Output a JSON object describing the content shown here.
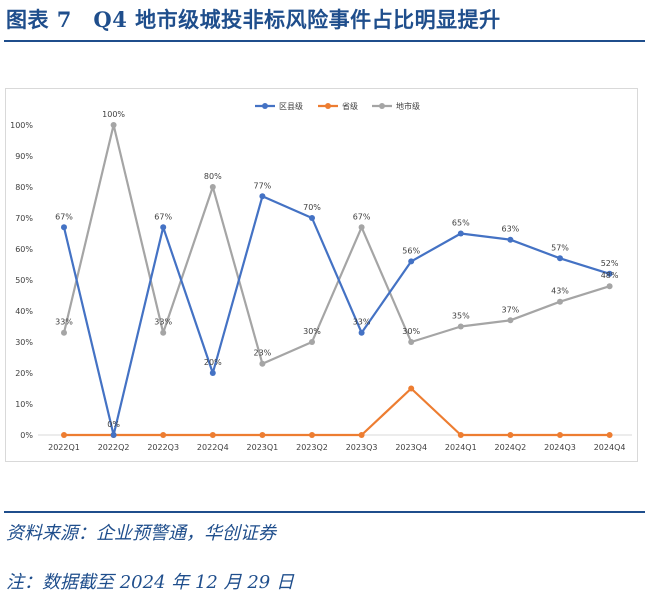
{
  "figure": {
    "title": "图表 7　Q4 地市级城投非标风险事件占比明显提升",
    "source": "资料来源：企业预警通，华创证券",
    "note": "注：数据截至 2024 年 12 月 29 日"
  },
  "colors": {
    "district": "#4472C4",
    "province": "#ED7D31",
    "city": "#A5A5A5",
    "title": "#1F4E8C"
  },
  "chart_data": {
    "type": "line",
    "title": "",
    "xlabel": "",
    "ylabel": "",
    "categories": [
      "2022Q1",
      "2022Q2",
      "2022Q3",
      "2022Q4",
      "2023Q1",
      "2023Q2",
      "2023Q3",
      "2023Q4",
      "2024Q1",
      "2024Q2",
      "2024Q3",
      "2024Q4"
    ],
    "ylim": [
      0,
      100
    ],
    "yticks": [
      "0%",
      "10%",
      "20%",
      "30%",
      "40%",
      "50%",
      "60%",
      "70%",
      "80%",
      "90%",
      "100%"
    ],
    "legend_position": "top",
    "grid": false,
    "series": [
      {
        "name": "区县级",
        "color": "#4472C4",
        "values": [
          67,
          0,
          67,
          20,
          77,
          70,
          33,
          56,
          65,
          63,
          57,
          52
        ],
        "labels": [
          "67%",
          "0%",
          "67%",
          "20%",
          "77%",
          "70%",
          "33%",
          "56%",
          "65%",
          "63%",
          "57%",
          "52%"
        ]
      },
      {
        "name": "省级",
        "color": "#ED7D31",
        "values": [
          0,
          0,
          0,
          0,
          0,
          0,
          0,
          15,
          0,
          0,
          0,
          0
        ],
        "labels": []
      },
      {
        "name": "地市级",
        "color": "#A5A5A5",
        "values": [
          33,
          100,
          33,
          80,
          23,
          30,
          67,
          30,
          35,
          37,
          43,
          48
        ],
        "labels": [
          "33%",
          "100%",
          "33%",
          "80%",
          "23%",
          "30%",
          "67%",
          "30%",
          "35%",
          "37%",
          "43%",
          "48%"
        ]
      }
    ]
  }
}
